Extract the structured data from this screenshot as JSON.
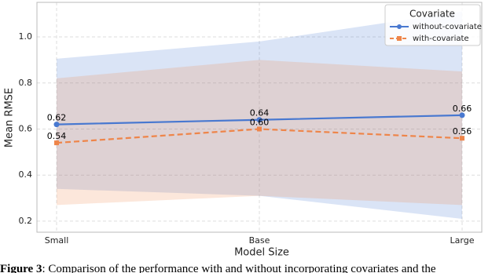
{
  "chart_data": {
    "type": "line",
    "xlabel": "Model Size",
    "ylabel": "Mean RMSE",
    "categories": [
      "Small",
      "Base",
      "Large"
    ],
    "ylim": [
      0.152,
      1.15
    ],
    "yticks": [
      0.2,
      0.4,
      0.6,
      0.8,
      {
        "value": 1,
        "label": "1.0"
      }
    ],
    "grid": true,
    "legend": {
      "title": "Covariate",
      "position": "upper right"
    },
    "series": [
      {
        "name": "without-covariate",
        "color": "#4878d0",
        "dashed": false,
        "marker": "circle",
        "values": [
          0.62,
          0.64,
          0.66
        ],
        "value_labels": [
          "0.62",
          "0.64",
          "0.66"
        ],
        "lower": [
          0.34,
          0.31,
          0.21
        ],
        "upper": [
          0.905,
          0.98,
          1.11
        ]
      },
      {
        "name": "with-covariate",
        "color": "#ee854a",
        "dashed": true,
        "marker": "square",
        "values": [
          0.54,
          0.6,
          0.56
        ],
        "value_labels": [
          "0.54",
          "0.60",
          "0.56"
        ],
        "lower": [
          0.27,
          0.31,
          0.27
        ],
        "upper": [
          0.82,
          0.9,
          0.85
        ]
      }
    ]
  },
  "caption": {
    "label": "Figure 3",
    "text": ": Comparison of the performance with and without incorporating covariates and the"
  }
}
